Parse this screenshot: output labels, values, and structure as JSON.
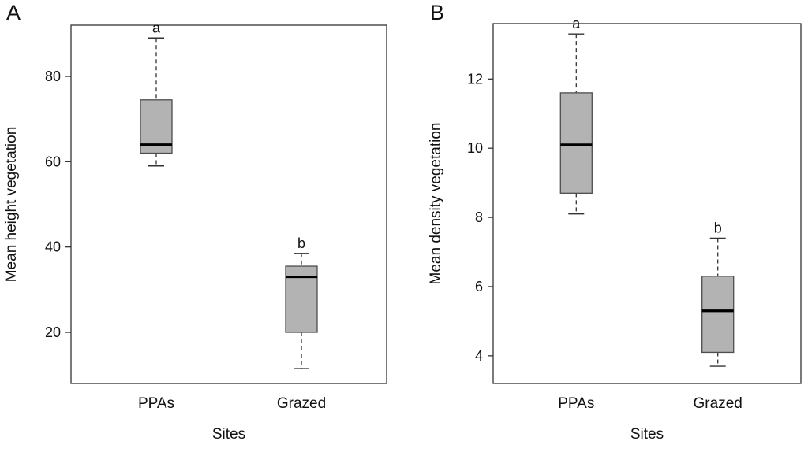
{
  "figure": {
    "background": "#ffffff"
  },
  "chart_data": [
    {
      "type": "boxplot",
      "panel_label": "A",
      "xlabel": "Sites",
      "ylabel": "Mean height vegetation",
      "categories": [
        "PPAs",
        "Grazed"
      ],
      "yticks": [
        20,
        40,
        60,
        80
      ],
      "ylim": [
        8,
        92
      ],
      "grid": false,
      "boxes": [
        {
          "category": "PPAs",
          "sig_letter": "a",
          "whisker_low": 59,
          "q1": 62,
          "median": 64,
          "q3": 74.5,
          "whisker_high": 89
        },
        {
          "category": "Grazed",
          "sig_letter": "b",
          "whisker_low": 11.5,
          "q1": 20,
          "median": 33,
          "q3": 35.5,
          "whisker_high": 38.5
        }
      ],
      "colors": {
        "axis": "#333333",
        "box_fill": "#b3b3b3",
        "box_stroke": "#4d4d4d",
        "median": "#000000",
        "text": "#111111"
      }
    },
    {
      "type": "boxplot",
      "panel_label": "B",
      "xlabel": "Sites",
      "ylabel": "Mean density vegetation",
      "categories": [
        "PPAs",
        "Grazed"
      ],
      "yticks": [
        4,
        6,
        8,
        10,
        12
      ],
      "ylim": [
        3.2,
        13.6
      ],
      "grid": false,
      "boxes": [
        {
          "category": "PPAs",
          "sig_letter": "a",
          "whisker_low": 8.1,
          "q1": 8.7,
          "median": 10.1,
          "q3": 11.6,
          "whisker_high": 13.3
        },
        {
          "category": "Grazed",
          "sig_letter": "b",
          "whisker_low": 3.7,
          "q1": 4.1,
          "median": 5.3,
          "q3": 6.3,
          "whisker_high": 7.4
        }
      ],
      "colors": {
        "axis": "#333333",
        "box_fill": "#b3b3b3",
        "box_stroke": "#4d4d4d",
        "median": "#000000",
        "text": "#111111"
      }
    }
  ]
}
